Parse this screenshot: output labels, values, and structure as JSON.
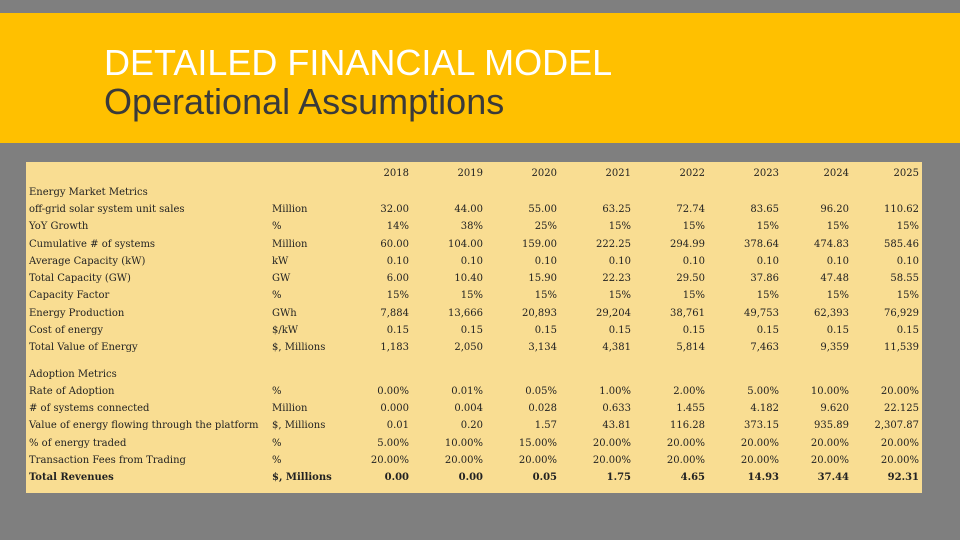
{
  "title": {
    "line1": "DETAILED FINANCIAL MODEL",
    "line2": "Operational Assumptions"
  },
  "colors": {
    "background": "#7f7f7f",
    "accent": "#ffc000",
    "table_fill": "#f9dd92"
  },
  "table": {
    "years": [
      "2018",
      "2019",
      "2020",
      "2021",
      "2022",
      "2023",
      "2024",
      "2025"
    ],
    "sections": [
      {
        "title": "Energy Market Metrics",
        "rows": [
          {
            "label": "off-grid solar system unit sales",
            "unit": "Million",
            "values": [
              "32.00",
              "44.00",
              "55.00",
              "63.25",
              "72.74",
              "83.65",
              "96.20",
              "110.62"
            ]
          },
          {
            "label": "YoY Growth",
            "unit": "%",
            "values": [
              "14%",
              "38%",
              "25%",
              "15%",
              "15%",
              "15%",
              "15%",
              "15%"
            ]
          },
          {
            "label": "Cumulative # of systems",
            "unit": "Million",
            "values": [
              "60.00",
              "104.00",
              "159.00",
              "222.25",
              "294.99",
              "378.64",
              "474.83",
              "585.46"
            ]
          },
          {
            "label": "Average Capacity (kW)",
            "unit": "kW",
            "values": [
              "0.10",
              "0.10",
              "0.10",
              "0.10",
              "0.10",
              "0.10",
              "0.10",
              "0.10"
            ]
          },
          {
            "label": "Total Capacity (GW)",
            "unit": "GW",
            "values": [
              "6.00",
              "10.40",
              "15.90",
              "22.23",
              "29.50",
              "37.86",
              "47.48",
              "58.55"
            ]
          },
          {
            "label": "Capacity Factor",
            "unit": "%",
            "values": [
              "15%",
              "15%",
              "15%",
              "15%",
              "15%",
              "15%",
              "15%",
              "15%"
            ]
          },
          {
            "label": "Energy Production",
            "unit": "GWh",
            "values": [
              "7,884",
              "13,666",
              "20,893",
              "29,204",
              "38,761",
              "49,753",
              "62,393",
              "76,929"
            ]
          },
          {
            "label": "Cost of energy",
            "unit": "$/kW",
            "values": [
              "0.15",
              "0.15",
              "0.15",
              "0.15",
              "0.15",
              "0.15",
              "0.15",
              "0.15"
            ]
          },
          {
            "label": "Total Value of Energy",
            "unit": "$, Millions",
            "values": [
              "1,183",
              "2,050",
              "3,134",
              "4,381",
              "5,814",
              "7,463",
              "9,359",
              "11,539"
            ]
          }
        ]
      },
      {
        "title": "Adoption Metrics",
        "rows": [
          {
            "label": "Rate of Adoption",
            "unit": "%",
            "values": [
              "0.00%",
              "0.01%",
              "0.05%",
              "1.00%",
              "2.00%",
              "5.00%",
              "10.00%",
              "20.00%"
            ]
          },
          {
            "label": "# of systems connected",
            "unit": "Million",
            "values": [
              "0.000",
              "0.004",
              "0.028",
              "0.633",
              "1.455",
              "4.182",
              "9.620",
              "22.125"
            ]
          },
          {
            "label": "Value of energy flowing through the platform",
            "unit": "$, Millions",
            "values": [
              "0.01",
              "0.20",
              "1.57",
              "43.81",
              "116.28",
              "373.15",
              "935.89",
              "2,307.87"
            ]
          },
          {
            "label": "% of energy traded",
            "unit": "%",
            "values": [
              "5.00%",
              "10.00%",
              "15.00%",
              "20.00%",
              "20.00%",
              "20.00%",
              "20.00%",
              "20.00%"
            ]
          },
          {
            "label": "Transaction Fees from Trading",
            "unit": "%",
            "values": [
              "20.00%",
              "20.00%",
              "20.00%",
              "20.00%",
              "20.00%",
              "20.00%",
              "20.00%",
              "20.00%"
            ]
          },
          {
            "label": "Total Revenues",
            "unit": "$, Millions",
            "values": [
              "0.00",
              "0.00",
              "0.05",
              "1.75",
              "4.65",
              "14.93",
              "37.44",
              "92.31"
            ],
            "bold": true
          }
        ]
      }
    ]
  }
}
